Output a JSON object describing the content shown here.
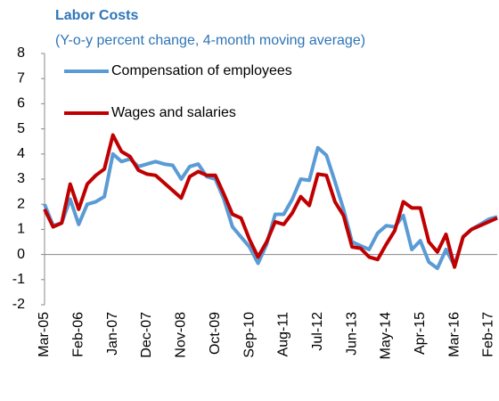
{
  "chart_data": {
    "type": "line",
    "title": "Labor Costs",
    "subtitle": "(Y-o-y percent change, 4-month moving average)",
    "categories": [
      "Mar-05",
      null,
      null,
      null,
      "Feb-06",
      null,
      null,
      null,
      "Jan-07",
      null,
      null,
      null,
      "Dec-07",
      null,
      null,
      null,
      "Nov-08",
      null,
      null,
      null,
      "Oct-09",
      null,
      null,
      null,
      "Sep-10",
      null,
      null,
      null,
      "Aug-11",
      null,
      null,
      null,
      "Jul-12",
      null,
      null,
      null,
      "Jun-13",
      null,
      null,
      null,
      "May-14",
      null,
      null,
      null,
      "Apr-15",
      null,
      null,
      null,
      "Mar-16",
      null,
      null,
      null,
      "Feb-17",
      null
    ],
    "series": [
      {
        "name": "Compensation of employees",
        "color": "#5b9bd5",
        "values": [
          2.0,
          1.15,
          1.25,
          2.2,
          1.2,
          2.0,
          2.1,
          2.3,
          4.0,
          3.7,
          3.8,
          3.5,
          3.6,
          3.7,
          3.6,
          3.55,
          3.0,
          3.5,
          3.6,
          3.1,
          3.0,
          2.2,
          1.1,
          0.7,
          0.3,
          -0.35,
          0.4,
          1.6,
          1.6,
          2.2,
          3.0,
          2.95,
          4.25,
          3.95,
          2.9,
          1.8,
          0.5,
          0.35,
          0.2,
          0.85,
          1.15,
          1.1,
          1.55,
          0.2,
          0.55,
          -0.3,
          -0.55,
          0.2,
          -0.45,
          0.7,
          1.0,
          1.2,
          1.4,
          1.5
        ]
      },
      {
        "name": "Wages and salaries",
        "color": "#c00000",
        "values": [
          1.8,
          1.1,
          1.25,
          2.8,
          1.8,
          2.8,
          3.15,
          3.4,
          4.75,
          4.1,
          3.9,
          3.35,
          3.2,
          3.15,
          2.85,
          2.55,
          2.25,
          3.1,
          3.3,
          3.15,
          3.15,
          2.4,
          1.6,
          1.45,
          0.6,
          -0.1,
          0.5,
          1.3,
          1.2,
          1.65,
          2.3,
          1.95,
          3.2,
          3.15,
          2.1,
          1.55,
          0.3,
          0.25,
          -0.1,
          -0.2,
          0.4,
          0.95,
          2.1,
          1.85,
          1.85,
          0.5,
          0.1,
          0.8,
          -0.5,
          0.7,
          1.0,
          1.15,
          1.3,
          1.45
        ]
      }
    ],
    "ylim": [
      -2,
      8
    ],
    "yticks": [
      -2,
      -1,
      0,
      1,
      2,
      3,
      4,
      5,
      6,
      7,
      8
    ],
    "grid": false,
    "legend": "upper left",
    "title_color": "#2e75b6"
  }
}
